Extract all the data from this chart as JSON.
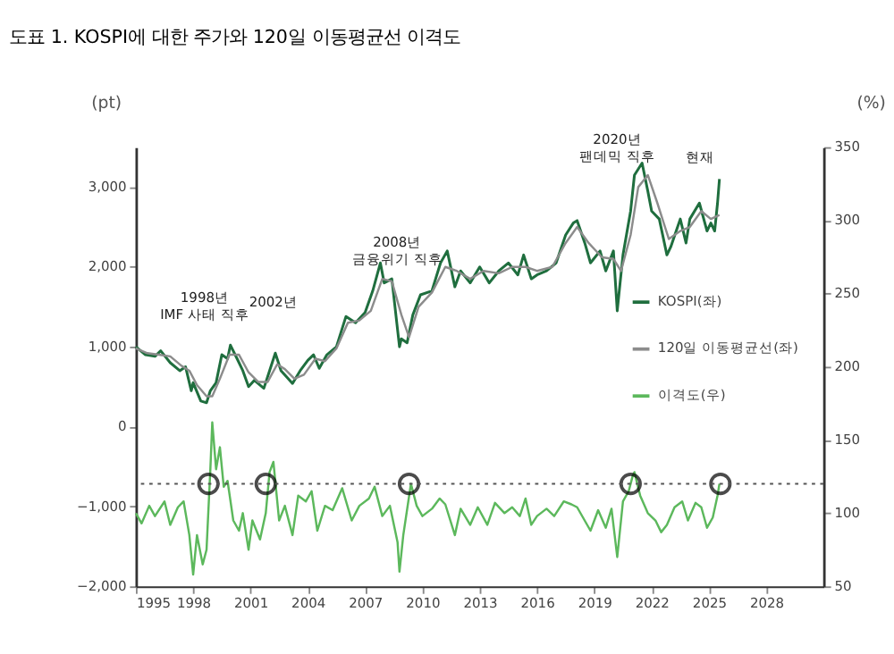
{
  "chart_data": {
    "type": "line",
    "title": "도표 1. KOSPI에 대한 주가와 120일 이동평균선 이격도",
    "ylabel": "(pt)",
    "y2label": "(%)",
    "xlim": [
      1995,
      2031
    ],
    "xticks": [
      1995,
      1998,
      2001,
      2004,
      2007,
      2010,
      2013,
      2016,
      2019,
      2022,
      2025,
      2028
    ],
    "ylim": [
      -2000,
      3500
    ],
    "yticks": [
      {
        "value": -2000,
        "label": "−2,000"
      },
      {
        "value": -1000,
        "label": "−1,000"
      },
      0,
      {
        "value": 1000,
        "label": "1,000"
      },
      {
        "value": 2000,
        "label": "2,000"
      },
      {
        "value": 3000,
        "label": "3,000"
      }
    ],
    "y2lim": [
      50,
      350
    ],
    "y2ticks": [
      50,
      100,
      150,
      200,
      250,
      300,
      350
    ],
    "grid": false,
    "legend": "right",
    "line_style": "solid",
    "series": [
      {
        "name": "KOSPI(좌)",
        "color": "#1f6e3e",
        "x": [
          1995.0,
          1995.5,
          1996.0,
          1996.3,
          1996.8,
          1997.3,
          1997.6,
          1997.9,
          1998.0,
          1998.4,
          1998.7,
          1998.9,
          1999.2,
          1999.5,
          1999.8,
          1999.95,
          2000.3,
          2000.6,
          2000.9,
          2001.2,
          2001.7,
          2002.0,
          2002.3,
          2002.6,
          2002.9,
          2003.2,
          2003.6,
          2004.0,
          2004.3,
          2004.6,
          2005.0,
          2005.5,
          2006.0,
          2006.5,
          2007.0,
          2007.4,
          2007.8,
          2008.0,
          2008.4,
          2008.8,
          2008.9,
          2009.2,
          2009.5,
          2009.9,
          2010.5,
          2010.95,
          2011.3,
          2011.7,
          2012.0,
          2012.5,
          2013.0,
          2013.5,
          2014.0,
          2014.5,
          2015.0,
          2015.3,
          2015.7,
          2016.0,
          2016.5,
          2017.0,
          2017.5,
          2017.9,
          2018.1,
          2018.5,
          2018.8,
          2019.3,
          2019.6,
          2020.0,
          2020.2,
          2020.5,
          2020.9,
          2021.1,
          2021.5,
          2021.8,
          2022.0,
          2022.4,
          2022.8,
          2023.0,
          2023.5,
          2023.8,
          2024.0,
          2024.5,
          2024.9,
          2025.1,
          2025.3,
          2025.45,
          2025.55
        ],
        "values": [
          1000,
          900,
          880,
          950,
          800,
          700,
          750,
          450,
          550,
          320,
          300,
          450,
          550,
          900,
          850,
          1020,
          850,
          700,
          500,
          580,
          480,
          700,
          920,
          700,
          620,
          540,
          700,
          830,
          900,
          730,
          900,
          1000,
          1380,
          1300,
          1430,
          1700,
          2050,
          1800,
          1850,
          1000,
          1100,
          1050,
          1400,
          1650,
          1700,
          2050,
          2200,
          1750,
          1950,
          1800,
          2000,
          1800,
          1950,
          2050,
          1900,
          2150,
          1850,
          1900,
          1950,
          2050,
          2400,
          2550,
          2580,
          2300,
          2050,
          2200,
          1950,
          2200,
          1450,
          2150,
          2700,
          3150,
          3300,
          2950,
          2700,
          2600,
          2150,
          2250,
          2600,
          2300,
          2600,
          2800,
          2450,
          2550,
          2450,
          2800,
          3100
        ]
      },
      {
        "name": "120일 이동평균선(좌)",
        "color": "#8c8c8c",
        "x": [
          1995.0,
          1995.6,
          1996.2,
          1996.8,
          1997.4,
          1997.8,
          1998.2,
          1998.7,
          1999.0,
          1999.4,
          1999.9,
          2000.4,
          2000.9,
          2001.4,
          2001.9,
          2002.4,
          2002.8,
          2003.3,
          2003.8,
          2004.4,
          2004.9,
          2005.5,
          2006.1,
          2006.7,
          2007.3,
          2007.9,
          2008.4,
          2008.9,
          2009.3,
          2009.8,
          2010.5,
          2011.2,
          2011.8,
          2012.5,
          2013.2,
          2014.0,
          2014.7,
          2015.4,
          2016.0,
          2016.8,
          2017.5,
          2018.1,
          2018.7,
          2019.4,
          2020.0,
          2020.4,
          2020.9,
          2021.3,
          2021.8,
          2022.3,
          2022.9,
          2023.5,
          2024.0,
          2024.6,
          2025.1,
          2025.55
        ],
        "values": [
          980,
          920,
          900,
          880,
          760,
          700,
          520,
          380,
          380,
          600,
          900,
          900,
          680,
          560,
          560,
          780,
          720,
          600,
          650,
          850,
          820,
          980,
          1300,
          1330,
          1450,
          1850,
          1820,
          1400,
          1120,
          1500,
          1680,
          2000,
          1950,
          1850,
          1950,
          1920,
          2000,
          2000,
          1950,
          2000,
          2300,
          2500,
          2300,
          2120,
          2100,
          1950,
          2400,
          3000,
          3150,
          2800,
          2350,
          2450,
          2500,
          2700,
          2600,
          2650
        ]
      },
      {
        "name": "이격도(우)",
        "color": "#5cb85c",
        "axis": "y2",
        "x": [
          1995.0,
          1995.3,
          1995.7,
          1996.0,
          1996.5,
          1996.8,
          1997.2,
          1997.5,
          1997.8,
          1998.0,
          1998.2,
          1998.5,
          1998.7,
          1998.9,
          1999.0,
          1999.2,
          1999.4,
          1999.6,
          1999.8,
          2000.1,
          2000.4,
          2000.6,
          2000.9,
          2001.1,
          2001.5,
          2001.8,
          2002.0,
          2002.2,
          2002.5,
          2002.8,
          2003.2,
          2003.5,
          2003.9,
          2004.2,
          2004.5,
          2004.9,
          2005.3,
          2005.8,
          2006.3,
          2006.7,
          2007.2,
          2007.5,
          2007.9,
          2008.3,
          2008.7,
          2008.8,
          2009.0,
          2009.4,
          2009.7,
          2010.0,
          2010.5,
          2010.9,
          2011.2,
          2011.7,
          2012.0,
          2012.5,
          2012.9,
          2013.4,
          2013.8,
          2014.3,
          2014.7,
          2015.1,
          2015.4,
          2015.7,
          2016.0,
          2016.5,
          2016.9,
          2017.4,
          2017.8,
          2018.1,
          2018.8,
          2019.2,
          2019.6,
          2019.9,
          2020.2,
          2020.5,
          2020.8,
          2021.0,
          2021.1,
          2021.4,
          2021.8,
          2022.2,
          2022.5,
          2022.8,
          2023.2,
          2023.6,
          2023.9,
          2024.3,
          2024.6,
          2024.9,
          2025.2,
          2025.45,
          2025.55
        ],
        "values": [
          100,
          93,
          105,
          98,
          108,
          92,
          104,
          108,
          85,
          58,
          85,
          65,
          75,
          130,
          162,
          130,
          145,
          118,
          122,
          95,
          88,
          100,
          75,
          95,
          82,
          100,
          128,
          135,
          95,
          105,
          85,
          112,
          108,
          115,
          88,
          105,
          102,
          117,
          95,
          105,
          110,
          118,
          98,
          105,
          80,
          60,
          85,
          120,
          105,
          98,
          103,
          110,
          106,
          85,
          103,
          92,
          104,
          92,
          107,
          100,
          104,
          98,
          110,
          92,
          98,
          103,
          98,
          108,
          106,
          104,
          88,
          102,
          90,
          103,
          70,
          108,
          115,
          125,
          128,
          112,
          100,
          95,
          87,
          92,
          104,
          108,
          95,
          107,
          104,
          90,
          97,
          112,
          120
        ]
      },
      {
        "type": "scatter",
        "marker": "circle",
        "color": "#000000",
        "axis": "y2",
        "x": [
          1998.8,
          2001.8,
          2009.3,
          2020.9,
          2025.6
        ],
        "values": [
          120,
          120,
          120,
          120,
          120
        ]
      }
    ],
    "ref_lines": [
      {
        "axis": "y2",
        "value": 120,
        "color": "#555555",
        "line_style": "dotted"
      }
    ],
    "annotations": [
      "1998년\nIMF 사태 직후",
      "2002년",
      "2008년\n금융위기 직후",
      "2020년\n팬데믹 직후",
      "현재"
    ]
  }
}
